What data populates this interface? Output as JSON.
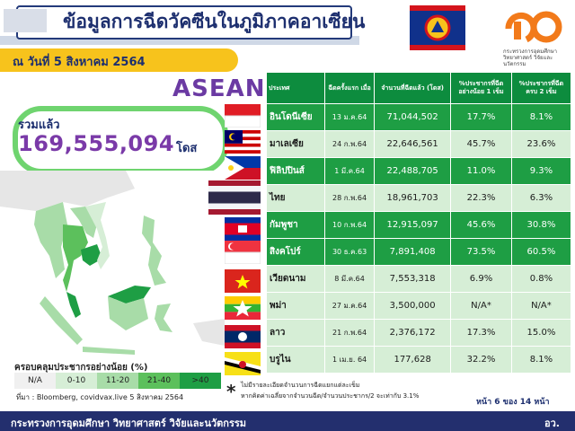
{
  "header": {
    "title": "ข้อมูลการฉีดวัคซีนในภูมิภาคอาเซียน",
    "date": "ณ วันที่ 5 สิงหาคม 2564",
    "logo_text": "กระทรวงการอุดมศึกษา วิทยาศาสตร์ วิจัยและนวัตกรรม"
  },
  "asean_label": "ASEAN",
  "total": {
    "label": "รวมแล้ว",
    "value": "169,555,094",
    "unit": "โดส"
  },
  "table": {
    "headers": [
      "ประเทศ",
      "ฉีดครั้งแรก เมื่อ",
      "จำนวนที่ฉีดแล้ว (โดส)",
      "%ประชากรที่ฉีด อย่างน้อย 1 เข็ม",
      "%ประชากรที่ฉีด ครบ 2 เข็ม"
    ],
    "rows": [
      {
        "country": "อินโดนีเซีย",
        "start": "13 ม.ค.64",
        "doses": "71,044,502",
        "pct1": "17.7%",
        "pct2": "8.1%"
      },
      {
        "country": "มาเลเซีย",
        "start": "24 ก.พ.64",
        "doses": "22,646,561",
        "pct1": "45.7%",
        "pct2": "23.6%"
      },
      {
        "country": "ฟิลิปปินส์",
        "start": "1 มี.ค.64",
        "doses": "22,488,705",
        "pct1": "11.0%",
        "pct2": "9.3%"
      },
      {
        "country": "ไทย",
        "start": "28 ก.พ.64",
        "doses": "18,961,703",
        "pct1": "22.3%",
        "pct2": "6.3%"
      },
      {
        "country": "กัมพูชา",
        "start": "10 ก.พ.64",
        "doses": "12,915,097",
        "pct1": "45.6%",
        "pct2": "30.8%"
      },
      {
        "country": "สิงคโปร์",
        "start": "30 ธ.ค.63",
        "doses": "7,891,408",
        "pct1": "73.5%",
        "pct2": "60.5%"
      },
      {
        "country": "เวียดนาม",
        "start": "8 มี.ค.64",
        "doses": "7,553,318",
        "pct1": "6.9%",
        "pct2": "0.8%"
      },
      {
        "country": "พม่า",
        "start": "27 ม.ค.64",
        "doses": "3,500,000",
        "pct1": "N/A*",
        "pct2": "N/A*"
      },
      {
        "country": "ลาว",
        "start": "21 ก.พ.64",
        "doses": "2,376,172",
        "pct1": "17.3%",
        "pct2": "15.0%"
      },
      {
        "country": "บรูไน",
        "start": "1 เม.ย. 64",
        "doses": "177,628",
        "pct1": "32.2%",
        "pct2": "8.1%"
      }
    ]
  },
  "legend": {
    "title": "ครอบคลุมประชากรอย่างน้อย (%)",
    "items": [
      {
        "label": "N/A",
        "color": "#f0f0f0"
      },
      {
        "label": "0-10",
        "color": "#d6eed6"
      },
      {
        "label": "11-20",
        "color": "#a8dca8"
      },
      {
        "label": "21-40",
        "color": "#5cc05c"
      },
      {
        "label": ">40",
        "color": "#1e9e44"
      }
    ]
  },
  "source": "ที่มา : Bloomberg, covidvax.live 5 สิงหาคม 2564",
  "note": {
    "star": "*",
    "line1": "ไม่มีรายละเอียดจำนวนการฉีดแยกแต่ละเข็ม",
    "line2": "หากคิดค่าเฉลี่ยจากจำนวนฉีด/จำนวนประชากร/2 จะเท่ากับ 3.1%"
  },
  "page": "หน้า 6 ของ 14 หน้า",
  "footer": {
    "text": "กระทรวงการอุดมศึกษา วิทยาศาสตร์ วิจัยและนวัตกรรม",
    "abbr": "อว."
  },
  "colors": {
    "row_dark": "#1e9e44",
    "row_light": "#d6eed6",
    "header_green": "#0d8c3e",
    "navy": "#232f6e",
    "accent_yellow": "#f7c31c",
    "purple": "#7a3aa8"
  }
}
